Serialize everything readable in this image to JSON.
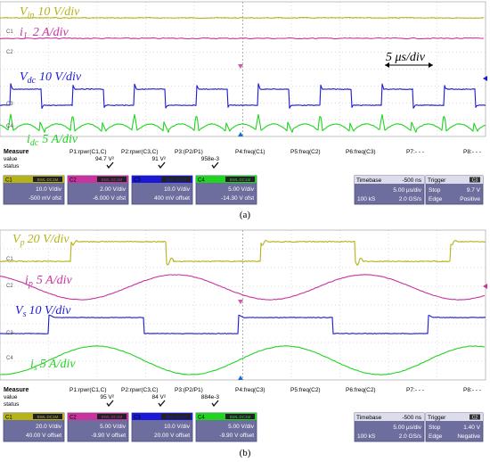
{
  "colors": {
    "ch1": "#b5b317",
    "ch2": "#c8339e",
    "ch3": "#1a1ad6",
    "ch4": "#21d421",
    "grid": "#b8b8b8",
    "panel": "#6e6e9e",
    "panel_dark": "#4c4c7a",
    "marker": "#c85aa8",
    "trigger_marker": "#1a6ad6",
    "check": "#111111"
  },
  "panels": [
    {
      "caption": "(a)",
      "trace_labels": {
        "ch1": {
          "sym": "V",
          "sub": "in",
          "scale": "10 V/div"
        },
        "ch2": {
          "sym": "i",
          "sub": "1",
          "scale": "2 A/div"
        },
        "ch3": {
          "sym": "V",
          "sub": "dc",
          "scale": "10 V/div"
        },
        "ch4": {
          "sym": "i",
          "sub": "dc",
          "scale": "5 A/div"
        }
      },
      "time_annotation": "5 μs/div",
      "channel_tags": [
        "C1",
        "C2",
        "C3",
        "C4"
      ],
      "measure": {
        "header": "Measure",
        "row_labels": [
          "value",
          "status"
        ],
        "columns": [
          {
            "name": "P1:rpwr(C1,C)",
            "value": "94.7 V²",
            "check": true
          },
          {
            "name": "P2:rpwr(C3,C)",
            "value": "91 V²",
            "check": true
          },
          {
            "name": "P3:(P2/P1)",
            "value": "958e-3",
            "check": true
          },
          {
            "name": "P4:freq(C1)",
            "value": "",
            "check": false
          },
          {
            "name": "P5:freq(C2)",
            "value": "",
            "check": false
          },
          {
            "name": "P6:freq(C3)",
            "value": "",
            "check": false
          },
          {
            "name": "P7:- - -",
            "value": "",
            "check": false
          },
          {
            "name": "P8:- - -",
            "value": "",
            "check": false
          }
        ]
      },
      "channels": [
        {
          "tag": "C1",
          "badge": "BWL DC1M",
          "scale": "10.0 V/div",
          "offset": "-500 mV ofst"
        },
        {
          "tag": "C2",
          "badge": "BWL DC1M",
          "scale": "2.00 V/div",
          "offset": "-6.000 V ofst"
        },
        {
          "tag": "C3",
          "badge": "BWL DC1M",
          "scale": "10.0 V/div",
          "offset": "400 mV offset"
        },
        {
          "tag": "C4",
          "badge": "BWL DC1M",
          "scale": "5.00 V/div",
          "offset": "-14.30 V ofst"
        }
      ],
      "timebase": {
        "title": "Timebase",
        "delay": "-500 ns",
        "div": "5.00 μs/div",
        "samples": "100 kS",
        "rate": "2.0 GS/s"
      },
      "trigger": {
        "title": "Trigger",
        "badge": "C3",
        "mode": "Stop",
        "level": "9.7 V",
        "type": "Edge",
        "slope": "Positive"
      }
    },
    {
      "caption": "(b)",
      "trace_labels": {
        "ch1": {
          "sym": "V",
          "sub": "p",
          "scale": "20 V/div"
        },
        "ch2": {
          "sym": "i",
          "sub": "p",
          "scale": "5 A/div"
        },
        "ch3": {
          "sym": "V",
          "sub": "s",
          "scale": "10 V/div"
        },
        "ch4": {
          "sym": "i",
          "sub": "s",
          "scale": "5 A/div"
        }
      },
      "time_annotation": "",
      "channel_tags": [
        "C1",
        "C2",
        "C3",
        "C4"
      ],
      "measure": {
        "header": "Measure",
        "row_labels": [
          "value",
          "status"
        ],
        "columns": [
          {
            "name": "P1:rpwr(C1,C)",
            "value": "95 V²",
            "check": true
          },
          {
            "name": "P2:rpwr(C3,C)",
            "value": "84 V²",
            "check": true
          },
          {
            "name": "P3:(P2/P1)",
            "value": "884e-3",
            "check": true
          },
          {
            "name": "P4:freq(C3)",
            "value": "",
            "check": false
          },
          {
            "name": "P5:freq(C2)",
            "value": "",
            "check": false
          },
          {
            "name": "P6:freq(C2)",
            "value": "",
            "check": false
          },
          {
            "name": "P7:- - -",
            "value": "",
            "check": false
          },
          {
            "name": "P8:- - -",
            "value": "",
            "check": false
          }
        ]
      },
      "channels": [
        {
          "tag": "C1",
          "badge": "BWL DC1M",
          "scale": "20.0 V/div",
          "offset": "40.00 V offset"
        },
        {
          "tag": "C2",
          "badge": "BWL DC1M",
          "scale": "5.00 V/div",
          "offset": "-9.90 V offset"
        },
        {
          "tag": "C3",
          "badge": "BWL DC1M",
          "scale": "10.0 V/div",
          "offset": "20.00 V offset"
        },
        {
          "tag": "C4",
          "badge": "BWL DC1M",
          "scale": "5.00 V/div",
          "offset": "-9.90 V offset"
        }
      ],
      "timebase": {
        "title": "Timebase",
        "delay": "-500 ns",
        "div": "5.00 μs/div",
        "samples": "100 kS",
        "rate": "2.0 GS/s"
      },
      "trigger": {
        "title": "Trigger",
        "badge": "C2",
        "mode": "Stop",
        "level": "1.40 V",
        "type": "Edge",
        "slope": "Negative"
      }
    }
  ],
  "chart_data": [
    {
      "type": "line",
      "title": "",
      "x_unit": "div",
      "x_range": [
        0,
        10
      ],
      "grid": true,
      "series": [
        {
          "name": "Vin",
          "shape": "dc",
          "level_div": 0
        },
        {
          "name": "i1",
          "shape": "dc",
          "level_div": 0
        },
        {
          "name": "Vdc",
          "shape": "square",
          "period_div": 1.275,
          "duty": 0.5,
          "amplitude_div": 1.3
        },
        {
          "name": "idc",
          "shape": "ramp",
          "period_div": 1.275,
          "peak_div": 1.2,
          "min_div": 0.35
        }
      ]
    },
    {
      "type": "line",
      "title": "",
      "x_unit": "div",
      "x_range": [
        0,
        10
      ],
      "grid": true,
      "series": [
        {
          "name": "Vp",
          "shape": "square",
          "period_div": 3.9,
          "duty": 0.5,
          "amplitude_div": 1.3
        },
        {
          "name": "ip",
          "shape": "sine",
          "period_div": 3.9,
          "amplitude_div": 0.8
        },
        {
          "name": "Vs",
          "shape": "square",
          "period_div": 3.9,
          "duty": 0.5,
          "amplitude_div": 1.3
        },
        {
          "name": "is",
          "shape": "sine",
          "period_div": 3.9,
          "amplitude_div": 0.9
        }
      ]
    }
  ]
}
